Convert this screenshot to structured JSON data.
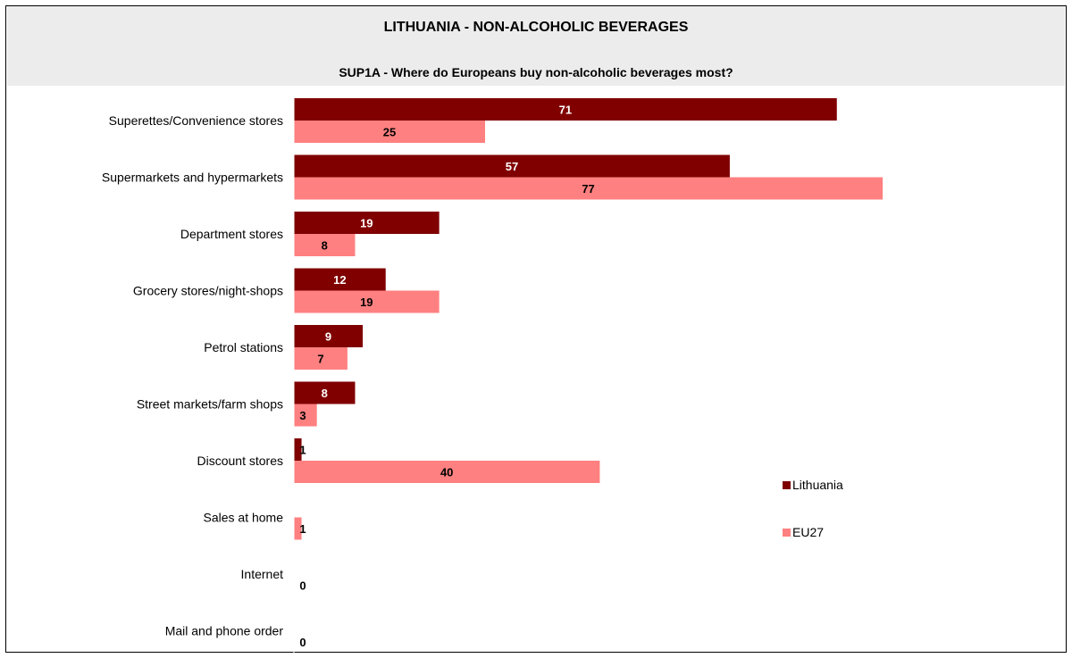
{
  "chart_data": {
    "type": "bar",
    "orientation": "horizontal",
    "title": "LITHUANIA - NON-ALCOHOLIC BEVERAGES",
    "subtitle": "SUP1A - Where do Europeans buy non-alcoholic beverages most?",
    "categories": [
      "Superettes/Convenience stores",
      "Supermarkets and hypermarkets",
      "Department stores",
      "Grocery stores/night-shops",
      "Petrol stations",
      "Street markets/farm shops",
      "Discount stores",
      "Sales at home",
      "Internet",
      "Mail and phone order"
    ],
    "series": [
      {
        "name": "Lithuania",
        "color": "#800000",
        "label_color": "#ffffff",
        "values": [
          71,
          57,
          19,
          12,
          9,
          8,
          1,
          0,
          0,
          0
        ],
        "labels": [
          "71",
          "57",
          "19",
          "12",
          "9",
          "8",
          "1",
          "",
          "",
          ""
        ]
      },
      {
        "name": "EU27",
        "color": "#ff8080",
        "label_color": "#000000",
        "values": [
          25,
          77,
          8,
          19,
          7,
          3,
          40,
          1,
          0,
          0
        ],
        "labels": [
          "25",
          "77",
          "8",
          "19",
          "7",
          "3",
          "40",
          "1",
          "0",
          "0"
        ]
      }
    ],
    "xlim": [
      0,
      100
    ],
    "grid": false,
    "legend": "right"
  }
}
